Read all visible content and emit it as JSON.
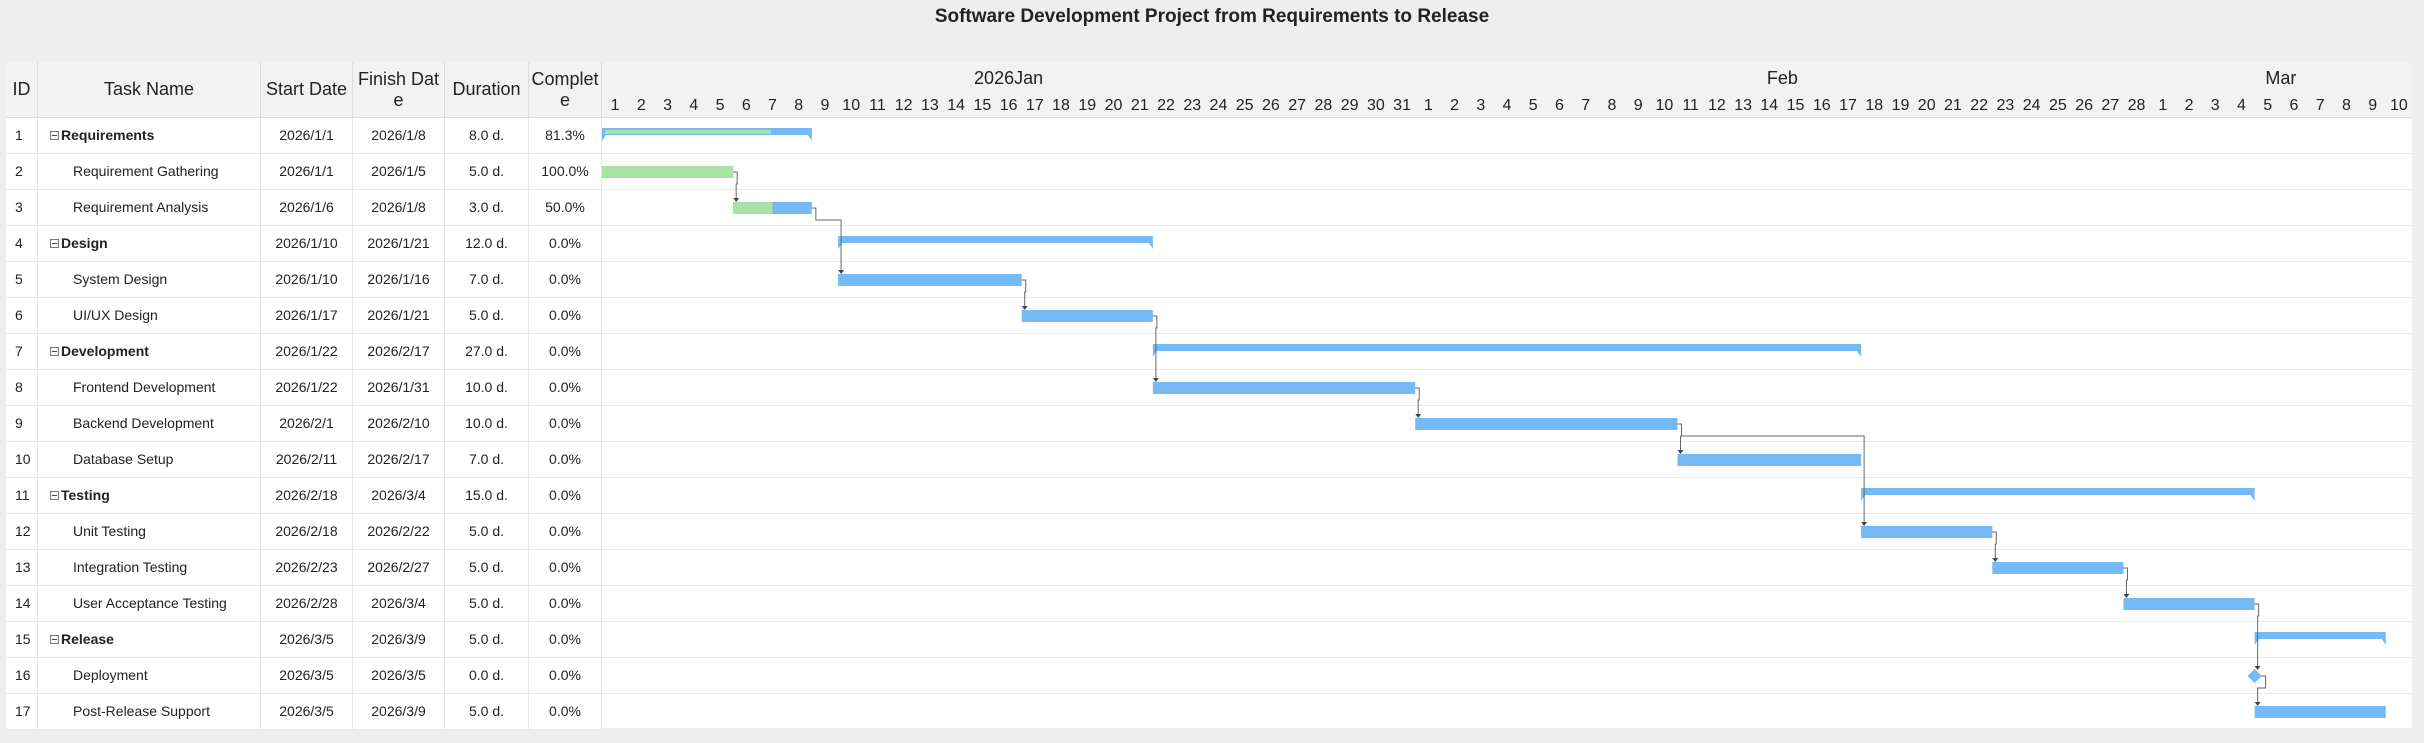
{
  "title": "Software Development Project from Requirements to Release",
  "columns": {
    "id": "ID",
    "name": "Task Name",
    "start": "Start Date",
    "finish": "Finish Date",
    "duration": "Duration",
    "complete": "Complete"
  },
  "chart_data": {
    "type": "gantt",
    "timeline_start": "2026-01-01",
    "timeline_end": "2026-03-10",
    "months": [
      {
        "label": "2026Jan",
        "start": "2026-01-01",
        "end": "2026-01-31"
      },
      {
        "label": "Feb",
        "start": "2026-02-01",
        "end": "2026-02-28"
      },
      {
        "label": "Mar",
        "start": "2026-03-01",
        "end": "2026-03-10"
      }
    ],
    "tasks": [
      {
        "id": 1,
        "name": "Requirements",
        "start": "2026/1/1",
        "finish": "2026/1/8",
        "duration": "8.0 d.",
        "complete": "81.3%",
        "progress": 0.813,
        "parent": true
      },
      {
        "id": 2,
        "name": "Requirement Gathering",
        "start": "2026/1/1",
        "finish": "2026/1/5",
        "duration": "5.0 d.",
        "complete": "100.0%",
        "progress": 1.0,
        "parent": false
      },
      {
        "id": 3,
        "name": "Requirement Analysis",
        "start": "2026/1/6",
        "finish": "2026/1/8",
        "duration": "3.0 d.",
        "complete": "50.0%",
        "progress": 0.5,
        "parent": false
      },
      {
        "id": 4,
        "name": "Design",
        "start": "2026/1/10",
        "finish": "2026/1/21",
        "duration": "12.0 d.",
        "complete": "0.0%",
        "progress": 0,
        "parent": true
      },
      {
        "id": 5,
        "name": "System Design",
        "start": "2026/1/10",
        "finish": "2026/1/16",
        "duration": "7.0 d.",
        "complete": "0.0%",
        "progress": 0,
        "parent": false
      },
      {
        "id": 6,
        "name": "UI/UX Design",
        "start": "2026/1/17",
        "finish": "2026/1/21",
        "duration": "5.0 d.",
        "complete": "0.0%",
        "progress": 0,
        "parent": false
      },
      {
        "id": 7,
        "name": "Development",
        "start": "2026/1/22",
        "finish": "2026/2/17",
        "duration": "27.0 d.",
        "complete": "0.0%",
        "progress": 0,
        "parent": true
      },
      {
        "id": 8,
        "name": "Frontend Development",
        "start": "2026/1/22",
        "finish": "2026/1/31",
        "duration": "10.0 d.",
        "complete": "0.0%",
        "progress": 0,
        "parent": false
      },
      {
        "id": 9,
        "name": "Backend Development",
        "start": "2026/2/1",
        "finish": "2026/2/10",
        "duration": "10.0 d.",
        "complete": "0.0%",
        "progress": 0,
        "parent": false
      },
      {
        "id": 10,
        "name": "Database Setup",
        "start": "2026/2/11",
        "finish": "2026/2/17",
        "duration": "7.0 d.",
        "complete": "0.0%",
        "progress": 0,
        "parent": false
      },
      {
        "id": 11,
        "name": "Testing",
        "start": "2026/2/18",
        "finish": "2026/3/4",
        "duration": "15.0 d.",
        "complete": "0.0%",
        "progress": 0,
        "parent": true
      },
      {
        "id": 12,
        "name": "Unit Testing",
        "start": "2026/2/18",
        "finish": "2026/2/22",
        "duration": "5.0 d.",
        "complete": "0.0%",
        "progress": 0,
        "parent": false
      },
      {
        "id": 13,
        "name": "Integration Testing",
        "start": "2026/2/23",
        "finish": "2026/2/27",
        "duration": "5.0 d.",
        "complete": "0.0%",
        "progress": 0,
        "parent": false
      },
      {
        "id": 14,
        "name": "User Acceptance Testing",
        "start": "2026/2/28",
        "finish": "2026/3/4",
        "duration": "5.0 d.",
        "complete": "0.0%",
        "progress": 0,
        "parent": false
      },
      {
        "id": 15,
        "name": "Release",
        "start": "2026/3/5",
        "finish": "2026/3/9",
        "duration": "5.0 d.",
        "complete": "0.0%",
        "progress": 0,
        "parent": true
      },
      {
        "id": 16,
        "name": "Deployment",
        "start": "2026/3/5",
        "finish": "2026/3/5",
        "duration": "0.0 d.",
        "complete": "0.0%",
        "progress": 0,
        "parent": false,
        "milestone": true
      },
      {
        "id": 17,
        "name": "Post-Release Support",
        "start": "2026/3/5",
        "finish": "2026/3/9",
        "duration": "5.0 d.",
        "complete": "0.0%",
        "progress": 0,
        "parent": false
      }
    ],
    "dependencies": [
      [
        2,
        3
      ],
      [
        3,
        5
      ],
      [
        5,
        6
      ],
      [
        6,
        8
      ],
      [
        8,
        9
      ],
      [
        9,
        10
      ],
      [
        9,
        12
      ],
      [
        12,
        13
      ],
      [
        13,
        14
      ],
      [
        14,
        16
      ],
      [
        16,
        17
      ]
    ]
  },
  "colors": {
    "bar": "#76b9f7",
    "progress": "#a7e3a5",
    "header_bg": "#f2f2f2",
    "page_bg": "#eeeeee",
    "link": "#666666"
  }
}
